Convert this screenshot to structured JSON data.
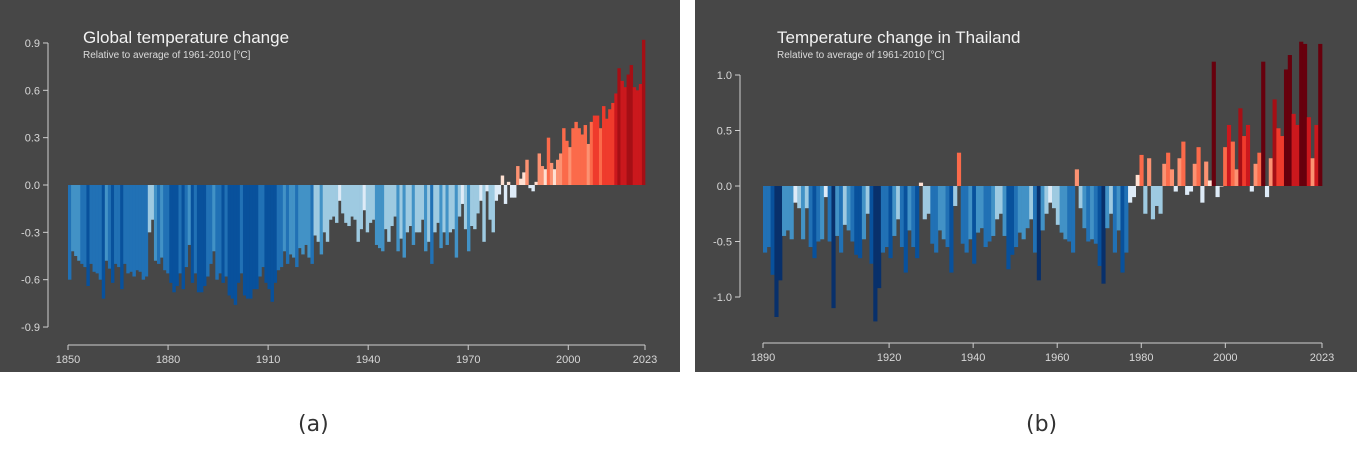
{
  "captions": [
    "(a)",
    "(b)"
  ],
  "chart_data": [
    {
      "type": "bar",
      "title": "Global temperature change",
      "subtitle": "Relative to average of 1961-2010  [°C]",
      "xlabel": "",
      "ylabel": "",
      "ylim": [
        -0.9,
        0.9
      ],
      "yticks": [
        "0.9",
        "0.6",
        "0.3",
        "0.0",
        "-0.3",
        "-0.6",
        "-0.9"
      ],
      "ytick_values": [
        0.9,
        0.6,
        0.3,
        0.0,
        -0.3,
        -0.6,
        -0.9
      ],
      "xticks": [
        "1850",
        "1880",
        "1910",
        "1940",
        "1970",
        "2000",
        "2023"
      ],
      "xtick_values": [
        1850,
        1880,
        1910,
        1940,
        1970,
        2000,
        2023
      ],
      "grid": false,
      "background": "#474747",
      "start_year": 1850,
      "values": [
        -0.6,
        -0.42,
        -0.45,
        -0.48,
        -0.5,
        -0.52,
        -0.64,
        -0.5,
        -0.55,
        -0.56,
        -0.6,
        -0.72,
        -0.48,
        -0.53,
        -0.62,
        -0.5,
        -0.52,
        -0.66,
        -0.5,
        -0.56,
        -0.55,
        -0.58,
        -0.54,
        -0.55,
        -0.6,
        -0.58,
        -0.3,
        -0.22,
        -0.48,
        -0.5,
        -0.46,
        -0.54,
        -0.56,
        -0.62,
        -0.68,
        -0.64,
        -0.56,
        -0.66,
        -0.52,
        -0.38,
        -0.62,
        -0.56,
        -0.68,
        -0.68,
        -0.64,
        -0.58,
        -0.5,
        -0.42,
        -0.6,
        -0.56,
        -0.62,
        -0.58,
        -0.7,
        -0.72,
        -0.76,
        -0.62,
        -0.56,
        -0.7,
        -0.72,
        -0.72,
        -0.66,
        -0.66,
        -0.58,
        -0.52,
        -0.62,
        -0.66,
        -0.74,
        -0.62,
        -0.54,
        -0.52,
        -0.42,
        -0.5,
        -0.44,
        -0.46,
        -0.52,
        -0.4,
        -0.44,
        -0.38,
        -0.46,
        -0.5,
        -0.32,
        -0.36,
        -0.44,
        -0.3,
        -0.36,
        -0.22,
        -0.2,
        -0.24,
        -0.1,
        -0.18,
        -0.24,
        -0.26,
        -0.2,
        -0.22,
        -0.36,
        -0.28,
        -0.16,
        -0.3,
        -0.24,
        -0.22,
        -0.38,
        -0.4,
        -0.42,
        -0.28,
        -0.36,
        -0.26,
        -0.2,
        -0.42,
        -0.34,
        -0.46,
        -0.3,
        -0.26,
        -0.38,
        -0.3,
        -0.3,
        -0.22,
        -0.42,
        -0.36,
        -0.5,
        -0.3,
        -0.24,
        -0.4,
        -0.3,
        -0.38,
        -0.3,
        -0.28,
        -0.46,
        -0.2,
        -0.12,
        -0.28,
        -0.42,
        -0.26,
        -0.28,
        -0.18,
        -0.1,
        -0.36,
        -0.04,
        -0.22,
        -0.3,
        -0.1,
        -0.06,
        0.06,
        -0.12,
        0.02,
        -0.08,
        -0.08,
        0.12,
        0.04,
        0.08,
        0.16,
        -0.02,
        -0.04,
        0.02,
        0.2,
        0.12,
        0.1,
        0.3,
        0.14,
        0.1,
        0.16,
        0.2,
        0.36,
        0.28,
        0.24,
        0.36,
        0.4,
        0.36,
        0.32,
        0.38,
        0.26,
        0.4,
        0.44,
        0.44,
        0.36,
        0.5,
        0.42,
        0.48,
        0.52,
        0.58,
        0.74,
        0.66,
        0.62,
        0.7,
        0.76,
        0.62,
        0.6,
        0.64,
        0.92
      ],
      "colors": {
        "darkest_blue": "#08306b",
        "dark_blue": "#08519c",
        "mid_blue": "#2171b5",
        "blue": "#4292c6",
        "light_blue": "#9ecae1",
        "palest_blue": "#deebf7",
        "palest_red": "#fee0d2",
        "light_red": "#fc9272",
        "red": "#fb6a4a",
        "mid_red": "#ef3b2c",
        "dark_red": "#cb181d",
        "darker_red": "#a50f15",
        "darkest_red": "#67000d"
      }
    },
    {
      "type": "bar",
      "title": "Temperature change in Thailand",
      "subtitle": "Relative to average of 1961-2010  [°C]",
      "xlabel": "",
      "ylabel": "",
      "ylim": [
        -1.25,
        1.35
      ],
      "yticks": [
        "1.0",
        "0.5",
        "0.0",
        "-0.5",
        "-1.0"
      ],
      "ytick_values": [
        1.0,
        0.5,
        0.0,
        -0.5,
        -1.0
      ],
      "xticks": [
        "1890",
        "1920",
        "1940",
        "1960",
        "1980",
        "2000",
        "2023"
      ],
      "xtick_values": [
        1890,
        1920,
        1940,
        1960,
        1980,
        2000,
        2023
      ],
      "grid": false,
      "background": "#474747",
      "start_year": 1890,
      "values": [
        -0.6,
        -0.55,
        -0.8,
        -1.18,
        -0.85,
        -0.45,
        -0.4,
        -0.48,
        -0.15,
        -0.2,
        -0.48,
        -0.2,
        -0.55,
        -0.65,
        -0.5,
        -0.48,
        -0.1,
        -0.5,
        -1.1,
        -0.45,
        -0.6,
        -0.35,
        -0.4,
        -0.5,
        -0.62,
        -0.65,
        -0.48,
        -0.25,
        -0.7,
        -1.22,
        -0.92,
        -0.6,
        -0.55,
        -0.65,
        -0.45,
        -0.3,
        -0.55,
        -0.78,
        -0.4,
        -0.55,
        -0.65,
        0.03,
        -0.3,
        -0.25,
        -0.52,
        -0.6,
        -0.4,
        -0.48,
        -0.55,
        -0.78,
        -0.18,
        0.3,
        -0.52,
        -0.6,
        -0.48,
        -0.7,
        -0.42,
        -0.38,
        -0.55,
        -0.5,
        -0.45,
        -0.3,
        -0.25,
        -0.45,
        -0.75,
        -0.62,
        -0.55,
        -0.42,
        -0.48,
        -0.38,
        -0.3,
        -0.6,
        -0.85,
        -0.4,
        -0.25,
        -0.15,
        -0.2,
        -0.35,
        -0.42,
        -0.48,
        -0.5,
        -0.6,
        0.15,
        -0.2,
        -0.38,
        -0.5,
        -0.48,
        -0.52,
        -0.72,
        -0.88,
        -0.38,
        -0.25,
        -0.6,
        -0.4,
        -0.78,
        -0.6,
        -0.15,
        -0.1,
        0.1,
        0.28,
        -0.25,
        0.25,
        -0.3,
        -0.18,
        -0.25,
        0.2,
        0.3,
        0.15,
        -0.05,
        0.25,
        0.4,
        -0.08,
        -0.05,
        0.2,
        0.35,
        -0.15,
        0.22,
        0.05,
        1.12,
        -0.1,
        0.0,
        0.35,
        0.55,
        0.4,
        0.15,
        0.7,
        0.45,
        0.55,
        -0.05,
        0.2,
        0.3,
        1.12,
        -0.1,
        0.25,
        0.78,
        0.52,
        0.45,
        1.05,
        1.18,
        0.65,
        0.55,
        1.3,
        1.28,
        0.62,
        0.25,
        0.55,
        1.28
      ],
      "colors": {
        "darkest_blue": "#08306b",
        "dark_blue": "#08519c",
        "mid_blue": "#2171b5",
        "blue": "#4292c6",
        "light_blue": "#9ecae1",
        "palest_blue": "#deebf7",
        "palest_red": "#fee0d2",
        "light_red": "#fc9272",
        "red": "#fb6a4a",
        "mid_red": "#ef3b2c",
        "dark_red": "#cb181d",
        "darker_red": "#a50f15",
        "darkest_red": "#67000d"
      }
    }
  ]
}
